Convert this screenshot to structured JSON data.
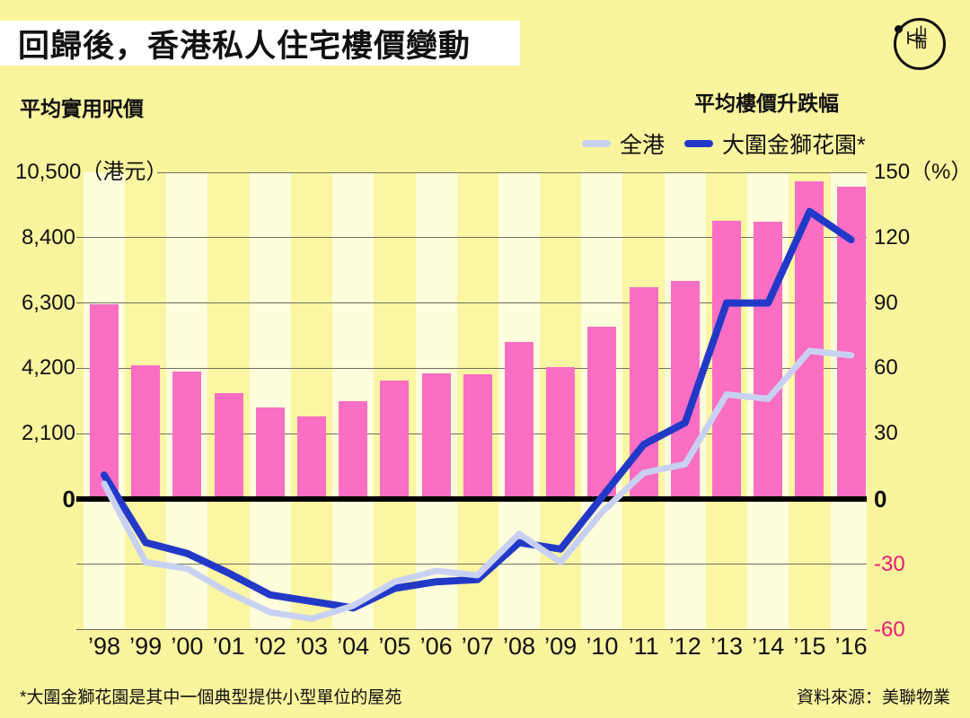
{
  "header": {
    "title": "回歸後，香港私人住宅樓價變動"
  },
  "logo": {
    "name": "initium-media-logo",
    "glyph_left": "立",
    "glyph_top": "山",
    "glyph_bottom": "而"
  },
  "left_axis_title": "平均實用呎價",
  "right_axis_title": "平均樓價升跌幅",
  "legend": [
    {
      "label": "全港",
      "color": "#C9D1F3"
    },
    {
      "label": "大圍金獅花園*",
      "color": "#2239C8"
    }
  ],
  "footer": {
    "note": "*大圍金獅花園是其中一個典型提供小型單位的屋苑",
    "source": "資料來源：美聯物業"
  },
  "colors": {
    "background": "#FAF49E",
    "stripe_pale": "#FEFDDC",
    "stripe_yellow": "#FBF6A3",
    "bar_pink": "#FA6EC3",
    "line_all_hk": "#C9D1F3",
    "line_estate": "#2239C8",
    "negative_tick": "#ED1A78",
    "gridline": "#70705E"
  },
  "chart_data": {
    "type": "bar+line",
    "title": "回歸後，香港私人住宅樓價變動",
    "categories": [
      "’98",
      "’99",
      "’00",
      "’01",
      "’02",
      "’03",
      "’04",
      "’05",
      "’06",
      "’07",
      "’08",
      "’09",
      "’10",
      "’11",
      "’12",
      "’13",
      "’14",
      "’15",
      "’16"
    ],
    "bar_series": {
      "name": "平均實用呎價（港元）",
      "axis": "left",
      "color": "#FA6EC3",
      "values": [
        6250,
        4300,
        4100,
        3400,
        2950,
        2650,
        3150,
        3800,
        4050,
        4000,
        5050,
        4250,
        5550,
        6800,
        7000,
        8950,
        8900,
        10200,
        10050
      ]
    },
    "line_series": [
      {
        "name": "大圍金獅花園*",
        "axis": "right",
        "color": "#2239C8",
        "stroke_width": 8,
        "values": [
          11,
          -20,
          -25,
          -34,
          -44,
          -47,
          -50,
          -41,
          -38,
          -37,
          -20,
          -23,
          1,
          25,
          35,
          90,
          90,
          132,
          119
        ]
      },
      {
        "name": "全港",
        "axis": "right",
        "color": "#C9D1F3",
        "stroke_width": 7,
        "values": [
          7,
          -29,
          -32,
          -43,
          -52,
          -55,
          -49,
          -38,
          -33,
          -35,
          -16,
          -29,
          -6,
          12,
          16,
          48,
          46,
          68,
          66
        ]
      }
    ],
    "left_axis": {
      "label": "平均實用呎價",
      "unit": "（港元）",
      "range": [
        0,
        10500
      ],
      "ticks": [
        {
          "label": "10,500（港元）",
          "value": 10500
        },
        {
          "label": "8,400",
          "value": 8400
        },
        {
          "label": "6,300",
          "value": 6300
        },
        {
          "label": "4,200",
          "value": 4200
        },
        {
          "label": "2,100",
          "value": 2100
        },
        {
          "label": "0",
          "value": 0,
          "bold": true
        }
      ]
    },
    "right_axis": {
      "label": "平均樓價升跌幅",
      "unit": "%",
      "range": [
        -60,
        150
      ],
      "ticks": [
        {
          "label": "150（%）",
          "value": 150
        },
        {
          "label": "120",
          "value": 120
        },
        {
          "label": "90",
          "value": 90
        },
        {
          "label": "60",
          "value": 60
        },
        {
          "label": "30",
          "value": 30
        },
        {
          "label": "0",
          "value": 0,
          "bold": true
        },
        {
          "label": "-30",
          "value": -30,
          "negative": true
        },
        {
          "label": "-60",
          "value": -60,
          "negative": true
        }
      ]
    },
    "grid": true,
    "legend_position": "top-right"
  }
}
